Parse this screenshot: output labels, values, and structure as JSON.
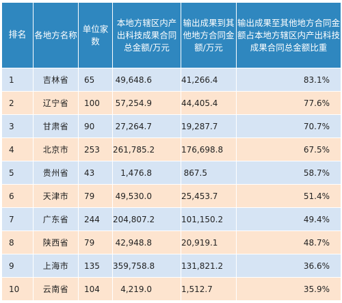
{
  "table": {
    "headers": {
      "rank": "排名",
      "region": "各地方名称",
      "unit_count": "单位家数",
      "local_amount": "本地方辖区内产出科技成果合同总金额/万元",
      "output_amount": "输出成果到其他地方合同金额/万元",
      "share": "输出成果至其他地方合同金额占本地方辖区内产出科技成果合同总金额比重"
    },
    "rows": [
      {
        "rank": "1",
        "region": "吉林省",
        "units": "65",
        "local": "49,648.6",
        "output": "41,266.4",
        "share": "83.1%"
      },
      {
        "rank": "2",
        "region": "辽宁省",
        "units": "100",
        "local": "57,254.9",
        "output": "44,405.4",
        "share": "77.6%"
      },
      {
        "rank": "3",
        "region": "甘肃省",
        "units": "90",
        "local": "27,264.7",
        "output": "19,287.7",
        "share": "70.7%"
      },
      {
        "rank": "4",
        "region": "北京市",
        "units": "253",
        "local": "261,785.2",
        "output": "176,698.8",
        "share": "67.5%"
      },
      {
        "rank": "5",
        "region": "贵州省",
        "units": "43",
        "local": "1,476.8",
        "output": "867.5",
        "share": "58.7%"
      },
      {
        "rank": "6",
        "region": "天津市",
        "units": "79",
        "local": "49,530.0",
        "output": "25,453.7",
        "share": "51.4%"
      },
      {
        "rank": "7",
        "region": "广东省",
        "units": "244",
        "local": "204,807.2",
        "output": "101,150.2",
        "share": "49.4%"
      },
      {
        "rank": "8",
        "region": "陕西省",
        "units": "79",
        "local": "42,948.8",
        "output": "20,919.1",
        "share": "48.7%"
      },
      {
        "rank": "9",
        "region": "上海市",
        "units": "135",
        "local": "359,758.8",
        "output": "131,821.2",
        "share": "36.6%"
      },
      {
        "rank": "10",
        "region": "云南省",
        "units": "104",
        "local": "4,219.0",
        "output": "1,512.7",
        "share": "35.9%"
      }
    ]
  },
  "colors": {
    "header_bg": "#2f87bf",
    "row_odd_bg": "#d6e4f4",
    "row_even_bg": "#fde4cf"
  }
}
